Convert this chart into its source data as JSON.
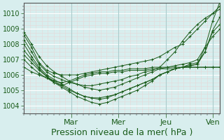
{
  "title": "",
  "xlabel": "Pression niveau de la mer( hPa )",
  "bg_color": "#d8eeee",
  "grid_color_major": "#ffffff",
  "grid_color_minor": "#e8d8d8",
  "line_color": "#1a5c1a",
  "ylim": [
    1003.5,
    1010.7
  ],
  "xlim": [
    0,
    4.15
  ],
  "day_labels": [
    "Mar",
    "Mer",
    "Jeu",
    "Ven"
  ],
  "day_positions": [
    1,
    2,
    3,
    4
  ],
  "series": [
    [
      1008.6,
      1007.8,
      1006.8,
      1006.3,
      1006.1,
      1006.0,
      1006.0,
      1006.0,
      1006.1,
      1006.2,
      1006.3,
      1006.4,
      1006.5,
      1006.6,
      1006.7,
      1006.8,
      1006.9,
      1007.0,
      1007.2,
      1007.5,
      1007.8,
      1008.0,
      1008.5,
      1009.0,
      1009.5,
      1010.0,
      1010.3
    ],
    [
      1008.3,
      1007.5,
      1006.7,
      1006.2,
      1005.9,
      1005.7,
      1005.5,
      1005.4,
      1005.3,
      1005.3,
      1005.4,
      1005.5,
      1005.6,
      1005.7,
      1005.9,
      1006.0,
      1006.2,
      1006.3,
      1006.5,
      1007.0,
      1007.5,
      1008.2,
      1008.8,
      1009.3,
      1009.7,
      1010.0,
      1010.5
    ],
    [
      1008.0,
      1007.2,
      1006.5,
      1006.0,
      1005.7,
      1005.4,
      1005.1,
      1004.8,
      1004.6,
      1004.5,
      1004.5,
      1004.6,
      1004.7,
      1004.9,
      1005.1,
      1005.3,
      1005.5,
      1005.7,
      1006.0,
      1006.2,
      1006.4,
      1006.5,
      1006.7,
      1006.8,
      1007.5,
      1008.8,
      1009.3
    ],
    [
      1007.6,
      1007.0,
      1006.4,
      1005.9,
      1005.5,
      1005.2,
      1004.9,
      1004.6,
      1004.4,
      1004.2,
      1004.1,
      1004.2,
      1004.4,
      1004.6,
      1004.8,
      1005.0,
      1005.3,
      1005.6,
      1006.0,
      1006.2,
      1006.4,
      1006.5,
      1006.6,
      1006.7,
      1007.8,
      1009.5,
      1010.8
    ],
    [
      1007.3,
      1006.8,
      1006.3,
      1005.9,
      1005.6,
      1005.3,
      1005.0,
      1004.8,
      1004.6,
      1004.5,
      1004.4,
      1004.5,
      1004.7,
      1004.9,
      1005.1,
      1005.3,
      1005.5,
      1005.7,
      1006.0,
      1006.2,
      1006.4,
      1006.5,
      1006.6,
      1006.7,
      1007.5,
      1008.9,
      1009.8
    ],
    [
      1007.0,
      1006.5,
      1006.1,
      1005.8,
      1005.5,
      1005.3,
      1005.5,
      1005.7,
      1005.9,
      1006.0,
      1006.1,
      1006.1,
      1006.2,
      1006.2,
      1006.3,
      1006.3,
      1006.3,
      1006.4,
      1006.4,
      1006.4,
      1006.4,
      1006.5,
      1006.5,
      1006.5,
      1006.5,
      1006.5,
      1006.5
    ],
    [
      1006.5,
      1006.2,
      1006.0,
      1005.8,
      1005.6,
      1005.5,
      1005.6,
      1005.8,
      1006.0,
      1006.1,
      1006.2,
      1006.2,
      1006.3,
      1006.3,
      1006.4,
      1006.4,
      1006.4,
      1006.5,
      1006.5,
      1006.5,
      1006.5,
      1006.5,
      1006.5,
      1006.5,
      1006.5,
      1006.5,
      1006.5
    ],
    [
      1008.8,
      1008.0,
      1007.2,
      1006.6,
      1006.2,
      1005.9,
      1005.6,
      1005.4,
      1005.2,
      1005.1,
      1005.0,
      1005.1,
      1005.2,
      1005.4,
      1005.6,
      1005.8,
      1006.0,
      1006.2,
      1006.4,
      1006.5,
      1006.6,
      1006.7,
      1006.8,
      1007.0,
      1007.8,
      1008.5,
      1009.0
    ]
  ],
  "xlabel_fontsize": 9,
  "tick_fontsize": 7,
  "label_fontsize": 8
}
